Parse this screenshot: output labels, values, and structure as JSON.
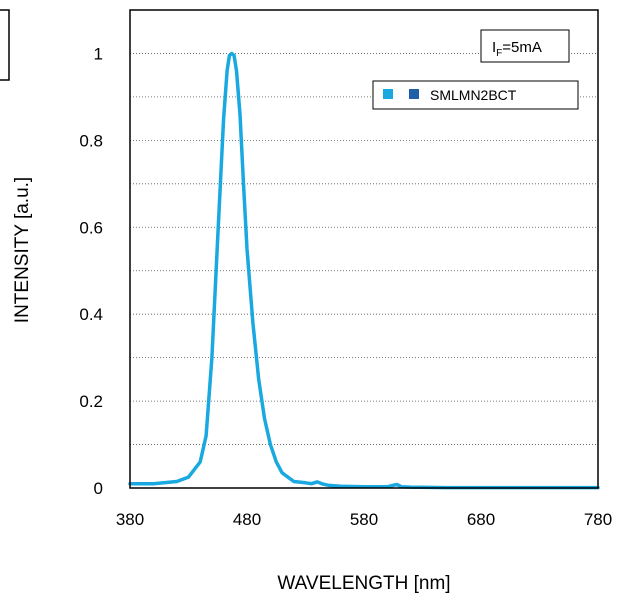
{
  "chart_data": {
    "type": "line",
    "title": "",
    "xlabel": "WAVELENGTH [nm]",
    "ylabel": "INTENSITY [a.u.]",
    "xlim": [
      380,
      780
    ],
    "ylim": [
      0,
      1.1
    ],
    "xticks": [
      380,
      480,
      580,
      680,
      780
    ],
    "yticks": [
      0,
      0.2,
      0.4,
      0.6,
      0.8,
      1
    ],
    "ytick_labels": [
      "0",
      "0.2",
      "0.4",
      "0.6",
      "0.8",
      "1"
    ],
    "grid": "horizontal-dotted",
    "legend_position": "top-right",
    "annotation": {
      "prefix": "I",
      "subscript": "F",
      "suffix": "=5mA"
    },
    "series": [
      {
        "name": "SMLMN2BCT",
        "color": "#19a9e0",
        "x": [
          380,
          400,
          420,
          430,
          440,
          445,
          450,
          455,
          460,
          463,
          465,
          467,
          469,
          471,
          474,
          477,
          480,
          485,
          490,
          495,
          500,
          505,
          510,
          520,
          530,
          535,
          540,
          545,
          550,
          560,
          580,
          600,
          608,
          612,
          620,
          650,
          700,
          780
        ],
        "values": [
          0.01,
          0.01,
          0.015,
          0.025,
          0.06,
          0.12,
          0.3,
          0.58,
          0.85,
          0.96,
          0.995,
          1.0,
          0.995,
          0.96,
          0.86,
          0.7,
          0.55,
          0.38,
          0.25,
          0.16,
          0.1,
          0.06,
          0.035,
          0.015,
          0.012,
          0.01,
          0.014,
          0.009,
          0.006,
          0.004,
          0.003,
          0.003,
          0.008,
          0.003,
          0.002,
          0.001,
          0.001,
          0.001
        ]
      }
    ]
  }
}
